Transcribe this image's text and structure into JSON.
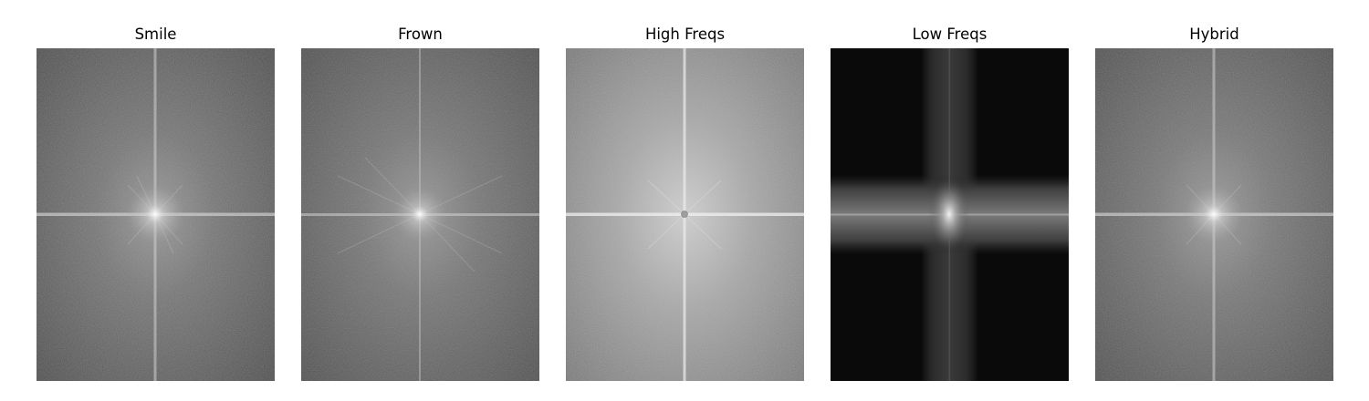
{
  "panels": [
    {
      "title": "Smile",
      "image": "smile-magnitude-spectrum"
    },
    {
      "title": "Frown",
      "image": "frown-magnitude-spectrum"
    },
    {
      "title": "High Freqs",
      "image": "high-frequency-magnitude-spectrum"
    },
    {
      "title": "Low Freqs",
      "image": "low-frequency-magnitude-spectrum"
    },
    {
      "title": "Hybrid",
      "image": "hybrid-magnitude-spectrum"
    }
  ],
  "colors": {
    "background": "#ffffff",
    "title_text": "#000000",
    "spectrum_dark": "#0a0a0a",
    "spectrum_mid": "#5e5e5e",
    "spectrum_bright": "#d8d8d8"
  }
}
